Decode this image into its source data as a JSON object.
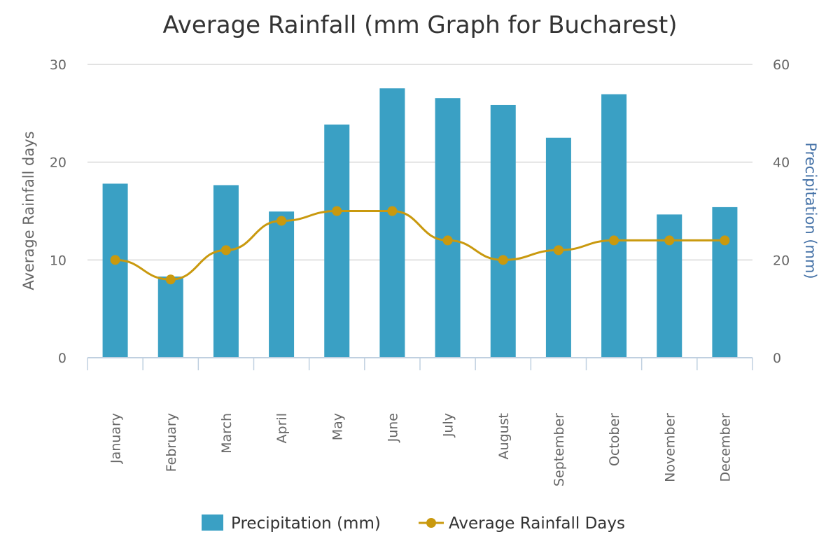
{
  "chart_data": {
    "type": "bar",
    "title": "Average Rainfall (mm Graph for Bucharest)",
    "categories": [
      "January",
      "February",
      "March",
      "April",
      "May",
      "June",
      "July",
      "August",
      "September",
      "October",
      "November",
      "December"
    ],
    "series": [
      {
        "name": "Precipitation (mm)",
        "type": "bar",
        "axis": "right",
        "color": "#3aa0c4",
        "values": [
          35.6,
          16.6,
          35.3,
          29.9,
          47.7,
          55.1,
          53.1,
          51.7,
          45.0,
          53.9,
          29.3,
          30.8
        ]
      },
      {
        "name": "Average Rainfall Days",
        "type": "line",
        "axis": "left",
        "color": "#c9990e",
        "values": [
          10,
          8,
          11,
          14,
          15,
          15,
          12,
          10,
          11,
          12,
          12,
          12
        ]
      }
    ],
    "y_left": {
      "label": "Average Rainfall days",
      "ylim": [
        0,
        30
      ],
      "ticks": [
        0,
        10,
        20,
        30
      ]
    },
    "y_right": {
      "label": "Precipitation (mm)",
      "ylim": [
        0,
        60
      ],
      "ticks": [
        0,
        20,
        40,
        60
      ]
    },
    "grid": true,
    "legend_position": "bottom-center",
    "colors": {
      "grid": "#d8d8d8",
      "axis": "#c0d0e0",
      "right_axis_title": "#4572a7"
    }
  }
}
